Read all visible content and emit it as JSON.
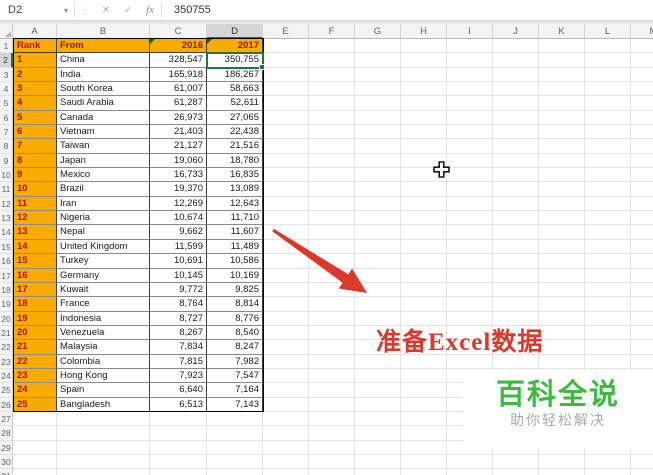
{
  "formula_bar": {
    "cell_ref": "D2",
    "value": "350755",
    "cancel_icon": "✕",
    "enter_icon": "✓",
    "fx_label": "fx",
    "caret": "▾",
    "dots": "⋮"
  },
  "columns": [
    "A",
    "B",
    "C",
    "D",
    "E",
    "F",
    "G",
    "H",
    "I",
    "J",
    "K",
    "L",
    "M"
  ],
  "selection": {
    "cell": "D2",
    "column": "D",
    "row": 2
  },
  "rows_total": 31,
  "chart_data": {
    "type": "table",
    "title": "",
    "headers": [
      "Rank",
      "From",
      "2016",
      "2017"
    ],
    "rows": [
      [
        "1",
        "China",
        "328,547",
        "350,755"
      ],
      [
        "2",
        "India",
        "165,918",
        "186,267"
      ],
      [
        "3",
        "South Korea",
        "61,007",
        "58,663"
      ],
      [
        "4",
        "Saudi Arabia",
        "61,287",
        "52,611"
      ],
      [
        "5",
        "Canada",
        "26,973",
        "27,065"
      ],
      [
        "6",
        "Vietnam",
        "21,403",
        "22,438"
      ],
      [
        "7",
        "Taiwan",
        "21,127",
        "21,516"
      ],
      [
        "8",
        "Japan",
        "19,060",
        "18,780"
      ],
      [
        "9",
        "Mexico",
        "16,733",
        "16,835"
      ],
      [
        "10",
        "Brazil",
        "19,370",
        "13,089"
      ],
      [
        "11",
        "Iran",
        "12,269",
        "12,643"
      ],
      [
        "12",
        "Nigeria",
        "10,674",
        "11,710"
      ],
      [
        "13",
        "Nepal",
        "9,662",
        "11,607"
      ],
      [
        "14",
        "United Kingdom",
        "11,599",
        "11,489"
      ],
      [
        "15",
        "Turkey",
        "10,691",
        "10,586"
      ],
      [
        "16",
        "Germany",
        "10,145",
        "10,169"
      ],
      [
        "17",
        "Kuwait",
        "9,772",
        "9,825"
      ],
      [
        "18",
        "France",
        "8,764",
        "8,814"
      ],
      [
        "19",
        "Indonesia",
        "8,727",
        "8,776"
      ],
      [
        "20",
        "Venezuela",
        "8,267",
        "8,540"
      ],
      [
        "21",
        "Malaysia",
        "7,834",
        "8,247"
      ],
      [
        "22",
        "Colombia",
        "7,815",
        "7,982"
      ],
      [
        "23",
        "Hong Kong",
        "7,923",
        "7,547"
      ],
      [
        "24",
        "Spain",
        "6,640",
        "7,164"
      ],
      [
        "25",
        "Bangladesh",
        "6,513",
        "7,143"
      ]
    ]
  },
  "annotation": {
    "text": "准备Excel数据"
  },
  "watermark": {
    "title": "百科全说",
    "subtitle": "助你轻松解决"
  },
  "colors": {
    "accent_green": "#217346",
    "header_fill": "#f9ab00",
    "header_text": "#8f1a00",
    "rank_text": "#a81400",
    "annotation_red": "#dd392b",
    "watermark_green": "#3cbc3c"
  }
}
